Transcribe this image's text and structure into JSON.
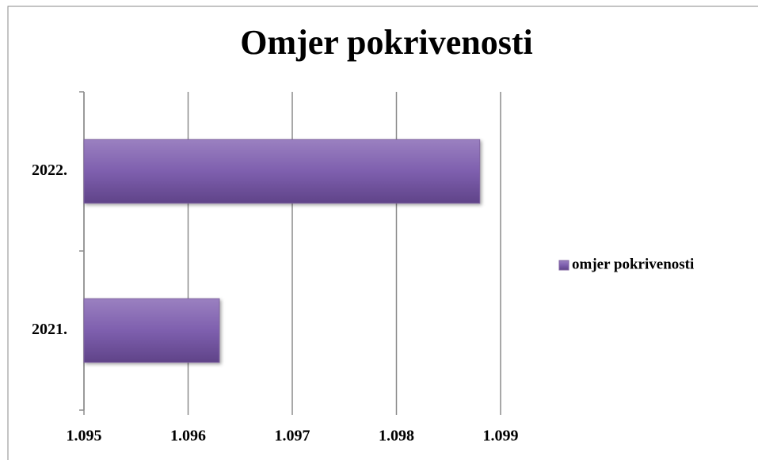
{
  "chart_data": {
    "type": "bar",
    "orientation": "horizontal",
    "title": "Omjer pokrivenosti",
    "categories": [
      "2021.",
      "2022."
    ],
    "series": [
      {
        "name": "omjer pokrivenosti",
        "color": "#8064a2",
        "values": [
          1.0963,
          1.0988
        ]
      }
    ],
    "xlim": [
      1.095,
      1.099
    ],
    "xticks": [
      1.095,
      1.096,
      1.097,
      1.098,
      1.099
    ],
    "grid": true,
    "legend": "right"
  }
}
